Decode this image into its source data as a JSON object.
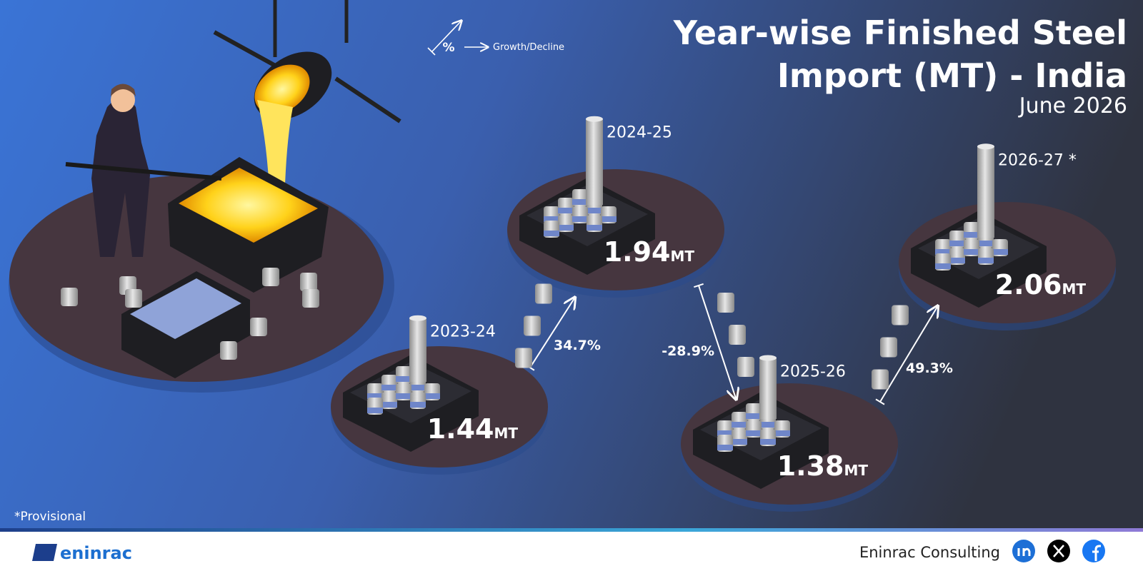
{
  "chart_data": {
    "type": "pictorial",
    "title_lines": [
      "Year-wise Finished Steel",
      "Import (MT) - India"
    ],
    "subtitle": "June 2026",
    "categories": [
      "2023-24",
      "2024-25",
      "2025-26",
      "2026-27 *"
    ],
    "values": [
      1.44,
      1.94,
      1.38,
      2.06
    ],
    "unit": "MT",
    "growth": {
      "values": [
        34.7,
        -28.9,
        49.3
      ],
      "value_labels": [
        "34.7%",
        "-28.9%",
        "49.3%"
      ]
    },
    "legend": {
      "symbol": "%",
      "label": "Growth/Decline"
    },
    "footnote": "*Provisional",
    "brand": "eninrac",
    "footer": "Eninrac Consulting",
    "platform_color": "#46363f",
    "pillar_color": "#b9b9b9"
  }
}
